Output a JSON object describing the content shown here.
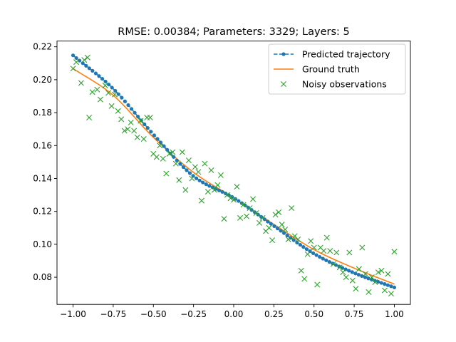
{
  "chart_data": {
    "type": "line",
    "title": "RMSE: 0.00384; Parameters: 3329; Layers: 5",
    "xlabel": "",
    "ylabel": "",
    "xlim": [
      -1.1,
      1.1
    ],
    "ylim": [
      0.0635,
      0.2235
    ],
    "xticks": [
      -1.0,
      -0.75,
      -0.5,
      -0.25,
      0.0,
      0.25,
      0.5,
      0.75,
      1.0
    ],
    "xtick_labels": [
      "−1.00",
      "−0.75",
      "−0.50",
      "−0.25",
      "0.00",
      "0.25",
      "0.50",
      "0.75",
      "1.00"
    ],
    "yticks": [
      0.08,
      0.1,
      0.12,
      0.14,
      0.16,
      0.18,
      0.2,
      0.22
    ],
    "ytick_labels": [
      "0.08",
      "0.10",
      "0.12",
      "0.14",
      "0.16",
      "0.18",
      "0.20",
      "0.22"
    ],
    "grid": false,
    "legend_position": "top-right",
    "series": [
      {
        "name": "Predicted trajectory",
        "style": "dashed-dots",
        "color": "#1f77b4",
        "x_start": -1.0,
        "x_end": 1.0,
        "n_points": 100,
        "x": [
          -1.0,
          -0.75,
          -0.5,
          -0.25,
          0.0,
          0.25,
          0.5,
          0.75,
          1.0
        ],
        "y": [
          0.2148,
          0.1945,
          0.1668,
          0.1414,
          0.1282,
          0.1112,
          0.0943,
          0.0826,
          0.0738
        ]
      },
      {
        "name": "Ground truth",
        "style": "line",
        "color": "#ff7f0e",
        "x": [
          -1.0,
          -0.75,
          -0.5,
          -0.25,
          0.0,
          0.25,
          0.5,
          0.75,
          1.0
        ],
        "y": [
          0.2068,
          0.1905,
          0.165,
          0.1437,
          0.1282,
          0.1121,
          0.0968,
          0.0855,
          0.0758
        ]
      },
      {
        "name": "Noisy observations",
        "style": "x-markers",
        "color": "#2ca02c",
        "points": [
          [
            -1.0,
            0.2068
          ],
          [
            -0.98,
            0.2107
          ],
          [
            -0.95,
            0.198
          ],
          [
            -0.93,
            0.212
          ],
          [
            -0.91,
            0.2135
          ],
          [
            -0.9,
            0.177
          ],
          [
            -0.88,
            0.1925
          ],
          [
            -0.85,
            0.194
          ],
          [
            -0.83,
            0.188
          ],
          [
            -0.8,
            0.1965
          ],
          [
            -0.78,
            0.192
          ],
          [
            -0.76,
            0.184
          ],
          [
            -0.74,
            0.191
          ],
          [
            -0.72,
            0.181
          ],
          [
            -0.7,
            0.176
          ],
          [
            -0.68,
            0.169
          ],
          [
            -0.66,
            0.17
          ],
          [
            -0.64,
            0.174
          ],
          [
            -0.62,
            0.169
          ],
          [
            -0.6,
            0.165
          ],
          [
            -0.58,
            0.175
          ],
          [
            -0.56,
            0.164
          ],
          [
            -0.54,
            0.177
          ],
          [
            -0.52,
            0.177
          ],
          [
            -0.5,
            0.155
          ],
          [
            -0.48,
            0.153
          ],
          [
            -0.46,
            0.16
          ],
          [
            -0.44,
            0.152
          ],
          [
            -0.42,
            0.143
          ],
          [
            -0.4,
            0.155
          ],
          [
            -0.38,
            0.156
          ],
          [
            -0.36,
            0.149
          ],
          [
            -0.34,
            0.139
          ],
          [
            -0.32,
            0.156
          ],
          [
            -0.3,
            0.133
          ],
          [
            -0.28,
            0.151
          ],
          [
            -0.26,
            0.14
          ],
          [
            -0.24,
            0.147
          ],
          [
            -0.22,
            0.144
          ],
          [
            -0.2,
            0.1265
          ],
          [
            -0.18,
            0.149
          ],
          [
            -0.16,
            0.132
          ],
          [
            -0.14,
            0.145
          ],
          [
            -0.12,
            0.133
          ],
          [
            -0.1,
            0.136
          ],
          [
            -0.08,
            0.142
          ],
          [
            -0.06,
            0.1155
          ],
          [
            -0.04,
            0.13
          ],
          [
            -0.02,
            0.128
          ],
          [
            0.0,
            0.127
          ],
          [
            0.02,
            0.135
          ],
          [
            0.04,
            0.116
          ],
          [
            0.06,
            0.124
          ],
          [
            0.08,
            0.117
          ],
          [
            0.1,
            0.122
          ],
          [
            0.12,
            0.1275
          ],
          [
            0.14,
            0.119
          ],
          [
            0.16,
            0.113
          ],
          [
            0.18,
            0.116
          ],
          [
            0.2,
            0.108
          ],
          [
            0.22,
            0.11
          ],
          [
            0.24,
            0.1025
          ],
          [
            0.26,
            0.118
          ],
          [
            0.28,
            0.1195
          ],
          [
            0.3,
            0.112
          ],
          [
            0.32,
            0.109
          ],
          [
            0.34,
            0.103
          ],
          [
            0.36,
            0.122
          ],
          [
            0.38,
            0.105
          ],
          [
            0.4,
            0.103
          ],
          [
            0.42,
            0.084
          ],
          [
            0.44,
            0.079
          ],
          [
            0.46,
            0.094
          ],
          [
            0.48,
            0.102
          ],
          [
            0.5,
            0.098
          ],
          [
            0.52,
            0.0755
          ],
          [
            0.54,
            0.098
          ],
          [
            0.56,
            0.096
          ],
          [
            0.58,
            0.104
          ],
          [
            0.6,
            0.096
          ],
          [
            0.62,
            0.088
          ],
          [
            0.64,
            0.095
          ],
          [
            0.66,
            0.086
          ],
          [
            0.68,
            0.083
          ],
          [
            0.7,
            0.08
          ],
          [
            0.72,
            0.095
          ],
          [
            0.74,
            0.078
          ],
          [
            0.76,
            0.073
          ],
          [
            0.78,
            0.085
          ],
          [
            0.8,
            0.098
          ],
          [
            0.82,
            0.082
          ],
          [
            0.84,
            0.071
          ],
          [
            0.86,
            0.08
          ],
          [
            0.88,
            0.077
          ],
          [
            0.9,
            0.083
          ],
          [
            0.92,
            0.084
          ],
          [
            0.94,
            0.072
          ],
          [
            0.96,
            0.082
          ],
          [
            0.98,
            0.07
          ],
          [
            1.0,
            0.0955
          ]
        ]
      }
    ]
  }
}
